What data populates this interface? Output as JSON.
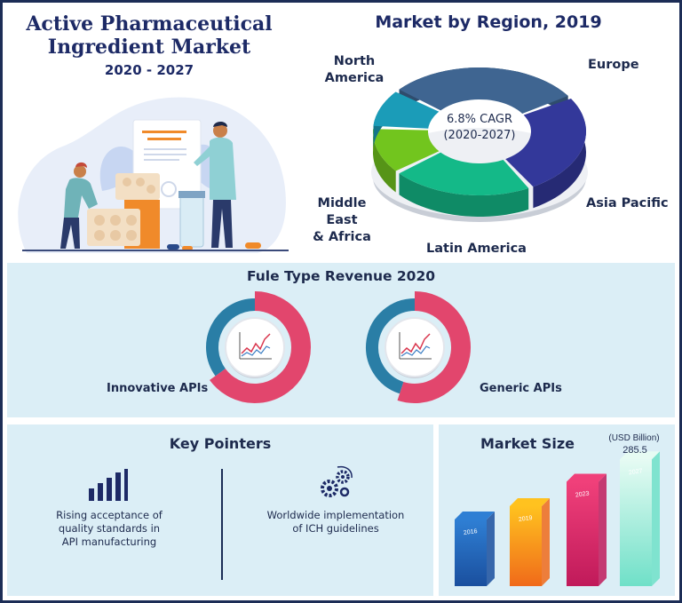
{
  "header": {
    "title_line1": "Active Pharmaceutical",
    "title_line2": "Ingredient Market",
    "years": "2020 - 2027"
  },
  "region": {
    "title": "Market by Region, 2019",
    "cagr_line1": "6.8% CAGR",
    "cagr_line2": "(2020-2027)",
    "labels": {
      "north_america_1": "North",
      "north_america_2": "America",
      "europe": "Europe",
      "asia_pacific": "Asia Pacific",
      "latin_america": "Latin America",
      "mea_1": "Middle East",
      "mea_2": "& Africa"
    }
  },
  "fuel": {
    "title": "Fule Type Revenue 2020",
    "innovative_label": "Innovative APIs",
    "generic_label": "Generic APIs"
  },
  "key": {
    "title": "Key Pointers",
    "p1_line1": "Rising acceptance of",
    "p1_line2": "quality standards in",
    "p1_line3": "API manufacturing",
    "p2_line1": "Worldwide implementation",
    "p2_line2": "of ICH guidelines"
  },
  "size": {
    "title": "Market Size",
    "unit": "(USD Billion)",
    "peak_label": "285.5"
  },
  "colors": {
    "navy": "#1d2a66",
    "panel_bg": "#dbeef6",
    "donut_pink": "#e2466d",
    "donut_teal": "#2a7ea6",
    "north_america": "#3f6591",
    "europe": "#33389a",
    "asia_pacific": "#14b988",
    "latin_america": "#72c51e",
    "mea": "#1b9cb8"
  },
  "chart_data": [
    {
      "type": "pie",
      "title": "Market by Region, 2019",
      "categories": [
        "North America",
        "Europe",
        "Asia Pacific",
        "Latin America",
        "Middle East & Africa"
      ],
      "values": [
        30,
        26,
        22,
        12,
        10
      ],
      "annotation": "6.8% CAGR (2020-2027)"
    },
    {
      "type": "pie",
      "title": "Fule Type Revenue 2020",
      "series": [
        {
          "name": "Innovative APIs",
          "categories": [
            "Innovative APIs",
            "Generic APIs"
          ],
          "values": [
            65,
            35
          ]
        },
        {
          "name": "Generic APIs",
          "categories": [
            "Generic APIs",
            "Innovative APIs"
          ],
          "values": [
            55,
            45
          ]
        }
      ]
    },
    {
      "type": "bar",
      "title": "Market Size",
      "ylabel": "(USD Billion)",
      "categories": [
        "2016",
        "2019",
        "2023",
        "2027"
      ],
      "values": [
        150,
        180,
        235,
        285.5
      ],
      "labeled_value": {
        "category": "2027",
        "value": 285.5
      }
    }
  ]
}
